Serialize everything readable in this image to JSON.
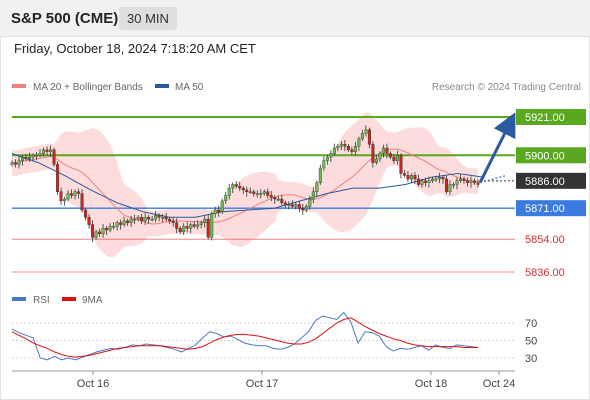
{
  "header": {
    "instrument": "S&P 500 (CME)",
    "timeframe": "30 MIN"
  },
  "datetime": "Friday, October 18, 2024 7:18:20 AM CET",
  "copyright": "Research © 2024 Trading Central",
  "legend": {
    "ma20_bb": {
      "label": "MA 20 + Bollinger Bands",
      "color": "#f08080"
    },
    "ma50": {
      "label": "MA 50",
      "color": "#2a5a9a"
    },
    "rsi": {
      "label": "RSI",
      "color": "#4a78c8"
    },
    "ma9": {
      "label": "9MA",
      "color": "#dd1111"
    }
  },
  "colors": {
    "up": "#6cc04a",
    "down": "#c8281c",
    "resistance": "#5aa820",
    "support_blue": "#3a7be0",
    "support_red": "#e05050",
    "current": "#333333"
  },
  "chart_data": [
    {
      "type": "candlestick",
      "title": "S&P 500 (CME) 30 MIN",
      "x_ticks": [
        "Oct 16",
        "Oct 17",
        "Oct 18",
        "Oct 24"
      ],
      "y_range": [
        5830,
        5930
      ],
      "levels": [
        {
          "label": "5921.00",
          "value": 5921,
          "kind": "resistance"
        },
        {
          "label": "5900.00",
          "value": 5900,
          "kind": "resistance"
        },
        {
          "label": "5886.00",
          "value": 5886,
          "kind": "current"
        },
        {
          "label": "5871.00",
          "value": 5871,
          "kind": "support_blue"
        },
        {
          "label": "5854.00",
          "value": 5854,
          "kind": "support_red"
        },
        {
          "label": "5836.00",
          "value": 5836,
          "kind": "support_red"
        }
      ],
      "closes": [
        5896,
        5895,
        5897,
        5899,
        5898,
        5899,
        5900,
        5900,
        5901,
        5903,
        5902,
        5903,
        5895,
        5880,
        5875,
        5876,
        5879,
        5878,
        5880,
        5879,
        5870,
        5866,
        5862,
        5855,
        5858,
        5857,
        5860,
        5859,
        5861,
        5861,
        5863,
        5862,
        5864,
        5863,
        5865,
        5865,
        5866,
        5864,
        5866,
        5865,
        5865,
        5867,
        5866,
        5866,
        5865,
        5864,
        5863,
        5860,
        5858,
        5861,
        5860,
        5862,
        5861,
        5862,
        5863,
        5865,
        5855,
        5868,
        5870,
        5869,
        5875,
        5878,
        5882,
        5884,
        5883,
        5882,
        5881,
        5880,
        5880,
        5879,
        5879,
        5879,
        5880,
        5878,
        5877,
        5876,
        5876,
        5874,
        5873,
        5873,
        5872,
        5873,
        5871,
        5870,
        5872,
        5876,
        5880,
        5885,
        5893,
        5897,
        5899,
        5901,
        5904,
        5905,
        5906,
        5905,
        5903,
        5902,
        5905,
        5909,
        5912,
        5914,
        5906,
        5896,
        5898,
        5901,
        5904,
        5901,
        5899,
        5897,
        5900,
        5890,
        5889,
        5887,
        5889,
        5887,
        5884,
        5886,
        5885,
        5886,
        5887,
        5887,
        5888,
        5887,
        5880,
        5884,
        5884,
        5886,
        5887,
        5886,
        5885,
        5886,
        5885,
        5884
      ],
      "ma50_approx": [
        5901,
        5896,
        5889,
        5881,
        5874,
        5869,
        5866,
        5866,
        5869,
        5870,
        5871,
        5875,
        5879,
        5882,
        5882,
        5884,
        5888,
        5890,
        5888
      ],
      "projection": {
        "from": 5885,
        "to": 5921
      }
    },
    {
      "type": "line",
      "title": "RSI",
      "y_ticks": [
        70,
        50,
        30
      ],
      "series": [
        {
          "name": "RSI",
          "values": [
            63,
            59,
            56,
            53,
            30,
            28,
            32,
            28,
            30,
            28,
            31,
            34,
            37,
            39,
            41,
            40,
            42,
            45,
            44,
            46,
            45,
            44,
            42,
            40,
            37,
            41,
            45,
            53,
            60,
            58,
            54,
            55,
            51,
            47,
            45,
            44,
            44,
            41,
            40,
            42,
            46,
            53,
            60,
            73,
            78,
            76,
            74,
            82,
            71,
            47,
            60,
            59,
            55,
            43,
            38,
            41,
            40,
            42,
            44,
            39,
            45,
            42,
            41,
            45,
            44,
            43,
            42
          ]
        },
        {
          "name": "9MA",
          "values": [
            60,
            56,
            52,
            47,
            44,
            41,
            37,
            34,
            32,
            31,
            32,
            33,
            35,
            37,
            39,
            41,
            42,
            43,
            44,
            44,
            44,
            44,
            43,
            42,
            41,
            40,
            41,
            43,
            47,
            51,
            54,
            56,
            57,
            57,
            56,
            55,
            53,
            51,
            49,
            47,
            46,
            46,
            48,
            52,
            58,
            64,
            70,
            74,
            76,
            71,
            66,
            62,
            58,
            55,
            52,
            50,
            47,
            45,
            44,
            43,
            43,
            43,
            43,
            43,
            42,
            42,
            42
          ]
        }
      ]
    }
  ]
}
